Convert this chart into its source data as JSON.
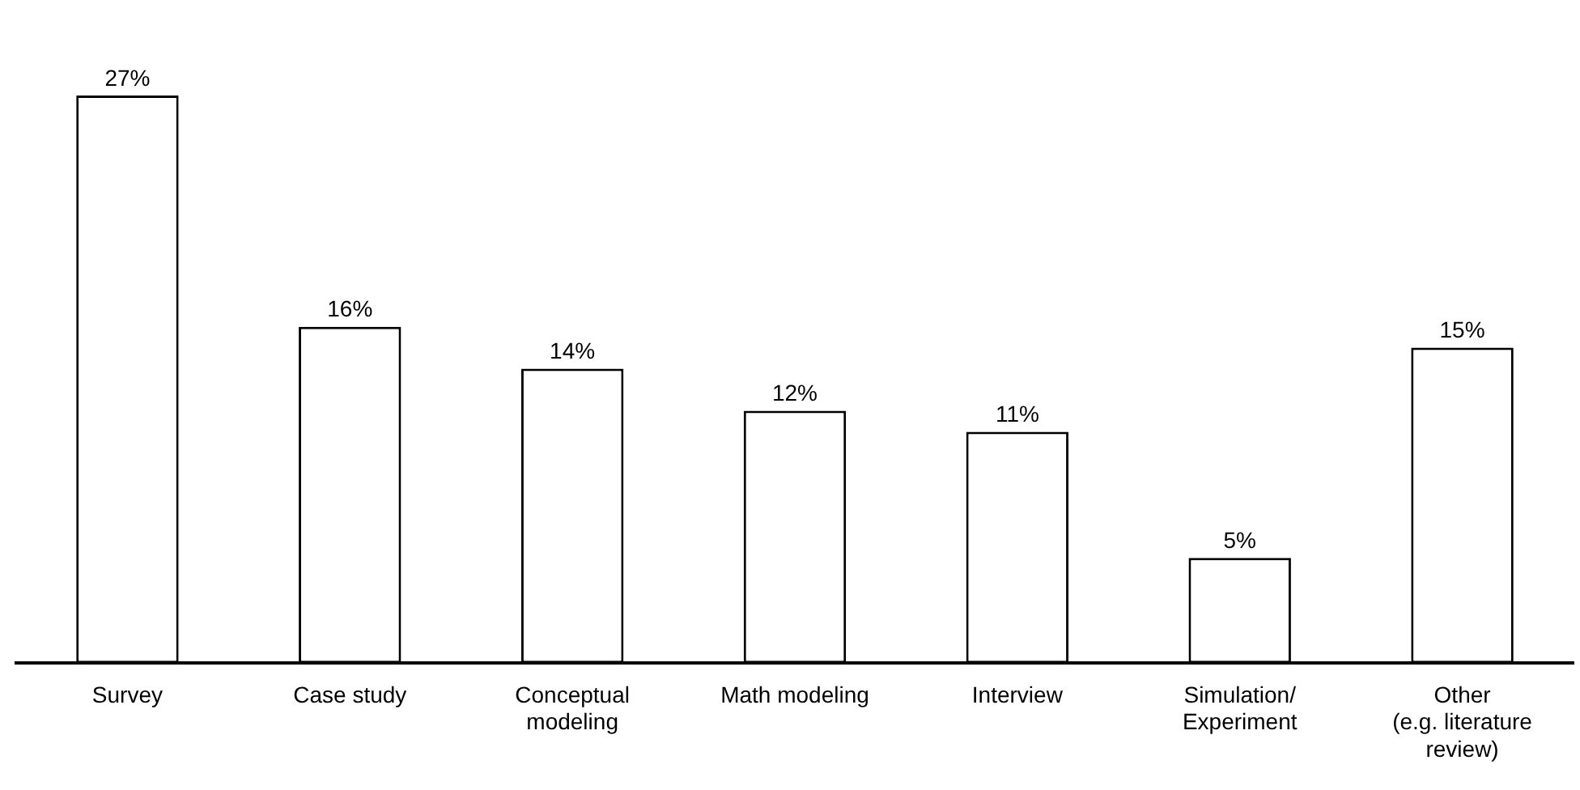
{
  "chart_data": {
    "type": "bar",
    "categories": [
      "Survey",
      "Case study",
      "Conceptual\nmodeling",
      "Math modeling",
      "Interview",
      "Simulation/\nExperiment",
      "Other\n(e.g. literature\nreview)"
    ],
    "values": [
      27,
      16,
      14,
      12,
      11,
      5,
      15
    ],
    "value_labels": [
      "27%",
      "16%",
      "14%",
      "12%",
      "11%",
      "5%",
      "15%"
    ],
    "color": "#ffffff",
    "grid": false,
    "legend": false
  }
}
